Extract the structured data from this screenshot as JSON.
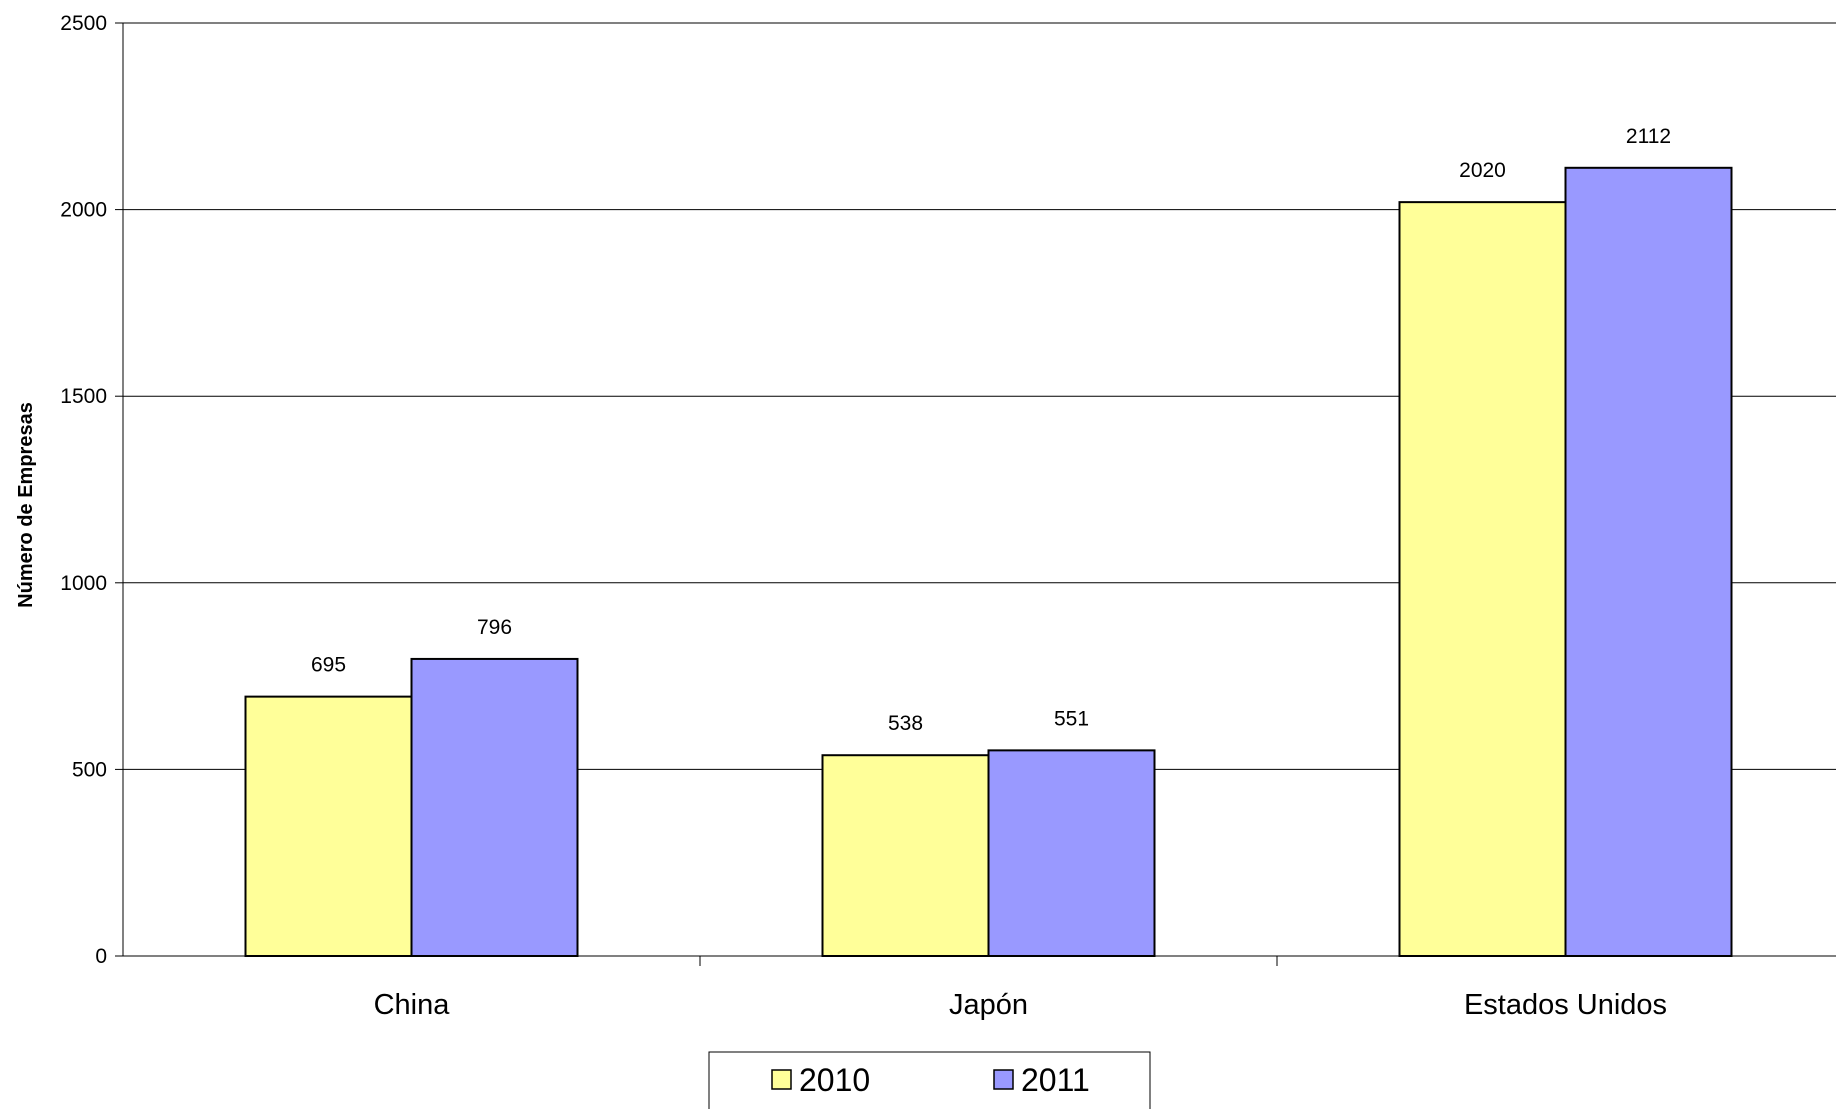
{
  "chart_data": {
    "type": "bar",
    "title": "",
    "xlabel": "",
    "ylabel": "Número de Empresas",
    "categories": [
      "China",
      "Japón",
      "Estados Unidos"
    ],
    "series": [
      {
        "name": "2010",
        "values": [
          695,
          538,
          2020
        ],
        "color": "#ffff99"
      },
      {
        "name": "2011",
        "values": [
          796,
          551,
          2112
        ],
        "color": "#9999ff"
      }
    ],
    "ylim": [
      0,
      2500
    ],
    "yticks": [
      0,
      500,
      1000,
      1500,
      2000,
      2500
    ],
    "grid": true,
    "data_labels": true,
    "legend": "bottom"
  }
}
